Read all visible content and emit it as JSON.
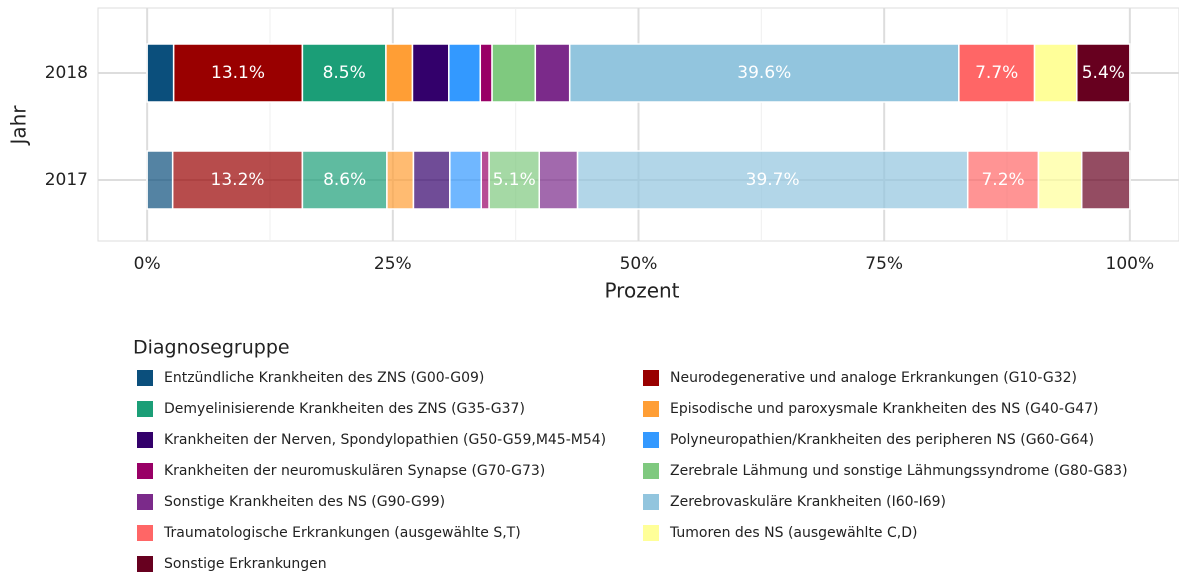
{
  "chart_data": {
    "type": "stacked_barh",
    "x_label": "Prozent",
    "y_label": "Jahr",
    "legend_title": "Diagnosegruppe",
    "categories": [
      "2018",
      "2017"
    ],
    "category_opacity": [
      1,
      0.7
    ],
    "xlim": [
      -5,
      105
    ],
    "xticks": [
      {
        "value": 0,
        "label": "0%"
      },
      {
        "value": 25,
        "label": "25%"
      },
      {
        "value": 50,
        "label": "50%"
      },
      {
        "value": 75,
        "label": "75%"
      },
      {
        "value": 100,
        "label": "100%"
      }
    ],
    "grid": true,
    "series": [
      {
        "name": "Entzündliche Krankheiten des ZNS (G00-G09)",
        "color": "#0b4f7c",
        "values": [
          2.7,
          2.6
        ]
      },
      {
        "name": "Neurodegenerative und analoge Erkrankungen (G10-G32)",
        "color": "#990000",
        "values": [
          13.1,
          13.2
        ],
        "value_labels": [
          "13.1%",
          "13.2%"
        ]
      },
      {
        "name": "Demyelinisierende Krankheiten des ZNS (G35-G37)",
        "color": "#1b9e77",
        "values": [
          8.5,
          8.6
        ],
        "value_labels": [
          "8.5%",
          "8.6%"
        ]
      },
      {
        "name": "Episodische und paroxysmale Krankheiten des NS (G40-G47)",
        "color": "#ff9e35",
        "values": [
          2.7,
          2.7
        ]
      },
      {
        "name": "Krankheiten der Nerven, Spondylopathien (G50-G59,M45-M54)",
        "color": "#33006b",
        "values": [
          3.7,
          3.7
        ]
      },
      {
        "name": "Polyneuropathien/Krankheiten des peripheren NS (G60-G64)",
        "color": "#3399ff",
        "values": [
          3.2,
          3.2
        ]
      },
      {
        "name": "Krankheiten der neuromuskulären Synapse (G70-G73)",
        "color": "#990066",
        "values": [
          1.2,
          0.8
        ]
      },
      {
        "name": "Zerebrale Lähmung und sonstige Lähmungssyndrome (G80-G83)",
        "color": "#7fc97f",
        "values": [
          4.4,
          5.1
        ],
        "value_labels": [
          null,
          "5.1%"
        ]
      },
      {
        "name": "Sonstige Krankheiten des NS (G90-G99)",
        "color": "#7b2a8a",
        "values": [
          3.5,
          3.9
        ]
      },
      {
        "name": "Zerebrovaskuläre Krankheiten (I60-I69)",
        "color": "#92c5de",
        "values": [
          39.6,
          39.7
        ],
        "value_labels": [
          "39.6%",
          "39.7%"
        ]
      },
      {
        "name": "Traumatologische Erkrankungen (ausgewählte S,T)",
        "color": "#ff6666",
        "values": [
          7.7,
          7.2
        ],
        "value_labels": [
          "7.7%",
          "7.2%"
        ]
      },
      {
        "name": "Tumoren des NS (ausgewählte C,D)",
        "color": "#ffff99",
        "values": [
          4.3,
          4.4
        ]
      },
      {
        "name": "Sonstige Erkrankungen",
        "color": "#67001f",
        "values": [
          5.4,
          4.9
        ],
        "value_labels": [
          "5.4%",
          null
        ]
      }
    ]
  }
}
